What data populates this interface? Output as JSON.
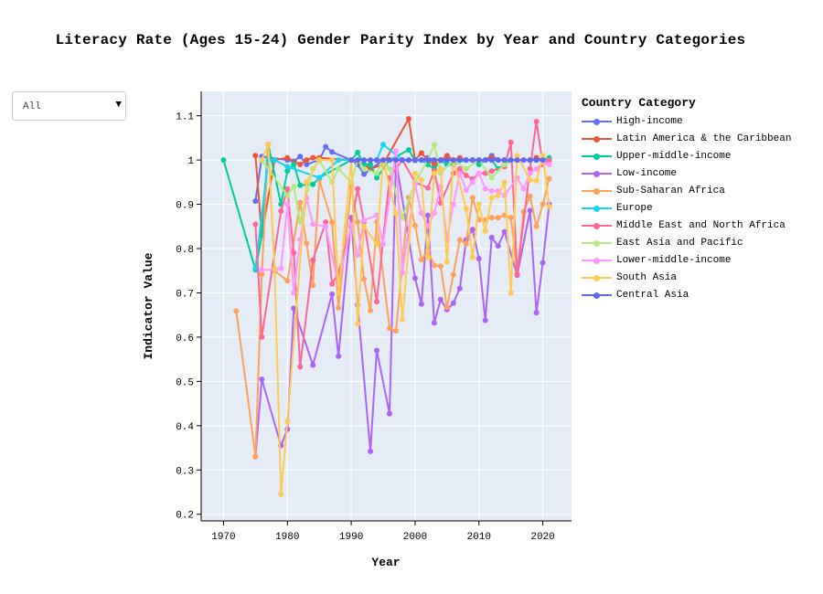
{
  "page_title": "Literacy Rate (Ages 15-24) Gender Parity Index by Year and Country Categories",
  "filter": {
    "selected": "All",
    "caret": "▼"
  },
  "chart_data": {
    "type": "line",
    "title": "Literacy Rate (Ages 15-24) Gender Parity Index by Year and Country Categories",
    "xlabel": "Year",
    "ylabel": "Indicator Value",
    "xlim": [
      1966.5,
      2024.5
    ],
    "ylim": [
      0.185,
      1.155
    ],
    "xticks": [
      1970,
      1980,
      1990,
      2000,
      2010,
      2020
    ],
    "yticks": [
      0.2,
      0.3,
      0.4,
      0.5,
      0.6,
      0.7,
      0.8,
      0.9,
      1,
      1.1
    ],
    "ytick_labels": [
      "0.2",
      "0.3",
      "0.4",
      "0.5",
      "0.6",
      "0.7",
      "0.8",
      "0.9",
      "1",
      "1.1"
    ],
    "grid": true,
    "legend_title": "Country Category",
    "legend_position": "right",
    "series": [
      {
        "name": "High-income",
        "color": "#636efa",
        "x": [
          1975,
          1976,
          1980,
          1981,
          1982,
          1983,
          1985,
          1986,
          1987,
          1990,
          1991,
          1992,
          1995,
          1996,
          1998,
          1999,
          2000,
          2001,
          2002,
          2003,
          2004,
          2005,
          2006,
          2007,
          2008,
          2009,
          2010,
          2011,
          2012,
          2013,
          2014,
          2015,
          2016,
          2017,
          2018,
          2019,
          2020,
          2021
        ],
        "y": [
          0.907,
          1.008,
          1.0,
          0.997,
          1.008,
          0.99,
          1.0,
          1.03,
          1.018,
          1.0,
          0.99,
          0.968,
          1.0,
          1.0,
          1.0,
          1.0,
          1.0,
          1.0,
          1.005,
          1.0,
          1.0,
          1.0,
          1.0,
          1.0,
          1.0,
          1.0,
          1.0,
          1.0,
          1.01,
          1.0,
          1.0,
          1.0,
          1.0,
          1.0,
          1.0,
          1.0,
          1.0,
          1.0
        ]
      },
      {
        "name": "Latin America & the Caribbean",
        "color": "#ef553b",
        "x": [
          1975,
          1976,
          1978,
          1980,
          1982,
          1983,
          1984,
          1985,
          1990,
          1992,
          1993,
          1995,
          1999,
          2000,
          2001,
          2002,
          2003,
          2004,
          2005,
          2006,
          2007,
          2008,
          2009,
          2010,
          2011,
          2012,
          2013,
          2014,
          2015,
          2016,
          2018,
          2019,
          2020,
          2021
        ],
        "y": [
          1.01,
          0.83,
          1.0,
          1.005,
          0.99,
          1.0,
          1.005,
          1.005,
          1.0,
          0.99,
          0.98,
          0.99,
          1.093,
          1.0,
          1.016,
          1.0,
          0.99,
          1.0,
          1.01,
          1.0,
          1.005,
          1.0,
          1.0,
          1.0,
          1.0,
          1.005,
          1.0,
          1.0,
          1.0,
          1.0,
          1.0,
          1.005,
          1.0,
          1.0
        ]
      },
      {
        "name": "Upper-middle-income",
        "color": "#00cc96",
        "x": [
          1970,
          1975,
          1976,
          1977,
          1979,
          1980,
          1981,
          1982,
          1984,
          1985,
          1990,
          1991,
          1992,
          1993,
          1994,
          1996,
          1999,
          2000,
          2001,
          2002,
          2003,
          2004,
          2005,
          2006,
          2007,
          2008,
          2009,
          2010,
          2011,
          2012,
          2013,
          2014,
          2015,
          2016,
          2018,
          2019,
          2020,
          2021
        ],
        "y": [
          1.0,
          0.752,
          0.83,
          1.035,
          0.9,
          0.975,
          0.99,
          0.943,
          0.945,
          0.96,
          1.0,
          1.017,
          0.99,
          0.99,
          0.96,
          1.0,
          1.023,
          0.999,
          1.0,
          0.99,
          0.98,
          0.999,
          0.99,
          0.99,
          1.0,
          1.0,
          1.0,
          0.99,
          1.0,
          1.0,
          0.98,
          0.99,
          1.0,
          1.0,
          1.0,
          1.0,
          1.0,
          1.005
        ]
      },
      {
        "name": "Low-income",
        "color": "#ab63fa",
        "x": [
          1975,
          1976,
          1979,
          1980,
          1981,
          1984,
          1987,
          1988,
          1990,
          1991,
          1993,
          1994,
          1996,
          1997,
          2000,
          2001,
          2002,
          2003,
          2004,
          2005,
          2006,
          2007,
          2008,
          2009,
          2010,
          2011,
          2012,
          2013,
          2014,
          2016,
          2018,
          2019,
          2020,
          2021
        ],
        "y": [
          0.33,
          0.505,
          0.355,
          0.392,
          0.665,
          0.537,
          0.697,
          0.557,
          0.87,
          0.673,
          0.342,
          0.57,
          0.427,
          1.0,
          0.733,
          0.675,
          0.875,
          0.632,
          0.685,
          0.662,
          0.677,
          0.71,
          0.82,
          0.843,
          0.777,
          0.638,
          0.825,
          0.806,
          0.838,
          0.74,
          0.886,
          0.655,
          0.768,
          0.9
        ]
      },
      {
        "name": "Sub-Saharan Africa",
        "color": "#ffa15a",
        "x": [
          1972,
          1975,
          1976,
          1977,
          1978,
          1980,
          1982,
          1983,
          1984,
          1985,
          1987,
          1988,
          1990,
          1991,
          1992,
          1993,
          1994,
          1996,
          1997,
          1999,
          2000,
          2001,
          2002,
          2003,
          2004,
          2005,
          2006,
          2007,
          2008,
          2009,
          2010,
          2011,
          2012,
          2013,
          2014,
          2015,
          2016,
          2017,
          2018,
          2019,
          2020,
          2021
        ],
        "y": [
          0.659,
          0.33,
          0.742,
          1.035,
          0.75,
          0.727,
          0.904,
          0.812,
          0.717,
          0.955,
          0.859,
          0.666,
          0.94,
          0.86,
          0.731,
          0.66,
          0.86,
          0.62,
          0.614,
          0.915,
          0.852,
          0.775,
          0.795,
          0.762,
          0.76,
          0.667,
          0.741,
          0.82,
          0.811,
          0.915,
          0.865,
          0.865,
          0.87,
          0.87,
          0.875,
          0.87,
          0.742,
          0.883,
          0.918,
          0.85,
          0.9,
          0.958
        ]
      },
      {
        "name": "Europe",
        "color": "#19d3f3",
        "x": [
          1975,
          1977,
          1978,
          1980,
          1985,
          1988,
          1990,
          1994,
          1995,
          1998,
          2000,
          2002,
          2004,
          2006,
          2008,
          2010,
          2012,
          2014,
          2016,
          2018,
          2020,
          2021
        ],
        "y": [
          0.755,
          1.0,
          1.0,
          0.985,
          0.96,
          1.0,
          1.0,
          1.0,
          1.035,
          1.0,
          1.0,
          1.0,
          1.0,
          0.99,
          1.0,
          1.0,
          1.0,
          1.0,
          1.0,
          1.0,
          1.0,
          1.0
        ]
      },
      {
        "name": "Middle East and North Africa",
        "color": "#ff6692",
        "x": [
          1975,
          1976,
          1979,
          1980,
          1981,
          1982,
          1984,
          1986,
          1987,
          1988,
          1990,
          1991,
          1992,
          1994,
          1996,
          1998,
          2000,
          2002,
          2003,
          2004,
          2006,
          2007,
          2008,
          2009,
          2010,
          2011,
          2012,
          2014,
          2015,
          2016,
          2018,
          2019,
          2020,
          2021
        ],
        "y": [
          0.855,
          0.6,
          0.885,
          0.935,
          0.79,
          0.533,
          0.774,
          0.86,
          0.72,
          0.745,
          0.85,
          0.935,
          0.86,
          0.68,
          0.96,
          1.0,
          0.95,
          0.937,
          0.976,
          0.903,
          0.97,
          0.98,
          0.965,
          0.957,
          0.97,
          0.97,
          0.975,
          0.985,
          1.04,
          0.742,
          0.98,
          1.087,
          0.99,
          1.0
        ]
      },
      {
        "name": "East Asia and Pacific",
        "color": "#b6e880",
        "x": [
          1976,
          1980,
          1981,
          1982,
          1984,
          1985,
          1987,
          1988,
          1990,
          1991,
          1992,
          1994,
          1995,
          1996,
          1998,
          2000,
          2002,
          2003,
          2004,
          2006,
          2008,
          2010,
          2012,
          2014,
          2016,
          2018,
          2020
        ],
        "y": [
          1.0,
          0.92,
          0.94,
          0.86,
          0.98,
          1.0,
          0.95,
          0.98,
          0.95,
          1.0,
          0.98,
          0.97,
          1.0,
          0.98,
          0.87,
          0.95,
          1.0,
          1.035,
          0.97,
          1.0,
          0.98,
          1.0,
          0.96,
          0.99,
          1.0,
          1.0,
          1.0
        ]
      },
      {
        "name": "Lower-middle-income",
        "color": "#ff97ff",
        "x": [
          1976,
          1978,
          1979,
          1980,
          1981,
          1982,
          1983,
          1984,
          1986,
          1988,
          1990,
          1991,
          1992,
          1994,
          1995,
          1997,
          1998,
          2000,
          2001,
          2002,
          2003,
          2004,
          2005,
          2006,
          2007,
          2008,
          2009,
          2010,
          2011,
          2012,
          2013,
          2014,
          2016,
          2017,
          2018,
          2019,
          2020,
          2021
        ],
        "y": [
          0.752,
          0.752,
          0.755,
          0.9,
          0.7,
          0.82,
          0.914,
          0.855,
          0.85,
          0.72,
          0.854,
          0.785,
          0.864,
          0.875,
          0.81,
          1.02,
          0.745,
          0.945,
          0.88,
          0.85,
          0.88,
          0.94,
          0.82,
          0.9,
          0.97,
          0.932,
          0.95,
          0.97,
          0.935,
          0.93,
          0.93,
          0.92,
          0.96,
          0.935,
          0.97,
          0.98,
          0.995,
          0.99
        ]
      },
      {
        "name": "South Asia",
        "color": "#fecb52",
        "x": [
          1976,
          1977,
          1978,
          1979,
          1980,
          1983,
          1985,
          1987,
          1988,
          1990,
          1991,
          1992,
          1994,
          1995,
          1997,
          1998,
          2000,
          2001,
          2002,
          2003,
          2004,
          2005,
          2006,
          2008,
          2009,
          2010,
          2011,
          2012,
          2013,
          2014,
          2015,
          2016,
          2018,
          2019,
          2020,
          2021
        ],
        "y": [
          1.0,
          1.035,
          0.755,
          0.245,
          0.41,
          0.95,
          1.0,
          1.0,
          0.7,
          1.0,
          0.63,
          0.85,
          0.81,
          1.0,
          0.88,
          0.64,
          0.97,
          0.955,
          0.78,
          0.97,
          0.98,
          0.77,
          1.0,
          0.89,
          0.78,
          0.9,
          0.84,
          0.915,
          0.92,
          0.95,
          0.7,
          1.01,
          0.955,
          0.953,
          1.01,
          0.895
        ]
      },
      {
        "name": "Central Asia",
        "color": "#6366f1",
        "x": [
          1990,
          1991,
          1992,
          1993,
          1994,
          1995,
          1996,
          1997,
          1998,
          1999,
          2000,
          2001,
          2002,
          2003,
          2004,
          2005,
          2006,
          2007,
          2008,
          2009,
          2010,
          2011,
          2012,
          2013,
          2014,
          2015,
          2016,
          2017,
          2018,
          2019,
          2020
        ],
        "y": [
          1.0,
          1.0,
          1.0,
          1.0,
          1.0,
          1.0,
          1.0,
          1.0,
          1.0,
          1.0,
          1.0,
          1.0,
          1.0,
          1.0,
          1.0,
          1.0,
          1.0,
          1.0,
          1.0,
          1.0,
          1.0,
          1.0,
          1.0,
          1.0,
          1.0,
          1.0,
          1.0,
          1.0,
          1.0,
          1.0,
          1.0
        ]
      }
    ]
  }
}
